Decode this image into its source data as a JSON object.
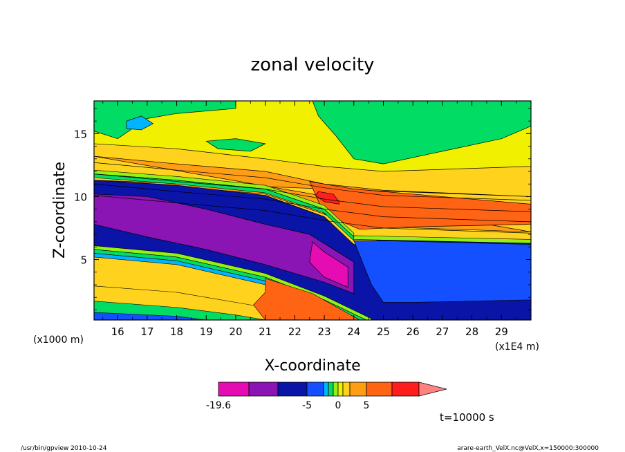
{
  "chart_data": {
    "type": "heatmap",
    "title": "zonal velocity",
    "xlabel": "X-coordinate",
    "ylabel": "Z-coordinate",
    "x_unit": "(x1E4 m)",
    "y_unit": "(x1000 m)",
    "xlim": [
      15.2,
      30.0
    ],
    "ylim": [
      0.2,
      17.6
    ],
    "x_ticks": [
      "16",
      "17",
      "18",
      "19",
      "20",
      "21",
      "22",
      "23",
      "24",
      "25",
      "26",
      "27",
      "28",
      "29"
    ],
    "y_ticks": [
      "5",
      "10",
      "15"
    ],
    "x_tick_values": [
      16,
      17,
      18,
      19,
      20,
      21,
      22,
      23,
      24,
      25,
      26,
      27,
      28,
      29
    ],
    "y_tick_values": [
      5,
      10,
      15
    ],
    "colorbar": {
      "levels": [
        -19.6,
        -15,
        -10,
        -5,
        -3,
        -2,
        -1,
        0,
        1,
        2,
        5,
        10,
        15
      ],
      "labels": [
        "-19.6",
        "-5",
        "0",
        "5"
      ],
      "label_values": [
        -19.6,
        -5,
        0,
        5
      ],
      "colors": [
        "#e60cb4",
        "#8a14b4",
        "#0a14a6",
        "#1450ff",
        "#00b4ff",
        "#00dc64",
        "#96f014",
        "#f0f000",
        "#ffd21e",
        "#ff9e14",
        "#ff6414",
        "#ff1e1e",
        "#ff8282"
      ]
    },
    "time_label": "t=10000 s",
    "footer_left": "/usr/bin/gpview  2010-10-24",
    "footer_right": "arare-earth_VelX.nc@VelX,x=150000:300000",
    "field": {
      "regions_desc": "layered flow: westward jet (negative) in lower-middle layers sloping down to the east; eastward flow above",
      "background": "#ffd21e",
      "bands": [
        {
          "level": 5,
          "color": "#ff9e14",
          "top": [
            [
              15.2,
              13.2
            ],
            [
              18,
              12.6
            ],
            [
              21,
              12.0
            ],
            [
              23,
              11.0
            ],
            [
              25,
              10.5
            ],
            [
              30,
              10.0
            ]
          ],
          "bottom": [
            [
              15.2,
              11.3
            ],
            [
              18,
              10.8
            ],
            [
              21,
              10.2
            ],
            [
              23,
              8.6
            ],
            [
              25,
              7.6
            ],
            [
              30,
              7.2
            ]
          ]
        },
        {
          "level": 10,
          "color": "#ff6414",
          "top": [
            [
              22.5,
              11.2
            ],
            [
              24,
              10.6
            ],
            [
              26,
              10.2
            ],
            [
              30,
              9.4
            ]
          ],
          "bottom": [
            [
              30,
              7.8
            ],
            [
              26,
              7.6
            ],
            [
              24.2,
              7.4
            ],
            [
              23,
              8.6
            ]
          ]
        },
        {
          "level": 15,
          "color": "#ff1e1e",
          "top": [
            [
              22.8,
              10.4
            ],
            [
              23.3,
              10.2
            ],
            [
              23.5,
              9.6
            ]
          ],
          "bottom": [
            [
              23.5,
              9.4
            ],
            [
              23.0,
              9.6
            ],
            [
              22.7,
              10.1
            ]
          ]
        },
        {
          "level": -5,
          "color": "#0a14a6",
          "top": [
            [
              15.2,
              11.3
            ],
            [
              18,
              10.9
            ],
            [
              21,
              10.1
            ],
            [
              23,
              8.4
            ],
            [
              24.0,
              6.2
            ],
            [
              25,
              6.6
            ],
            [
              30,
              6.4
            ]
          ],
          "bottom": [
            [
              30,
              0.2
            ],
            [
              24.6,
              0.2
            ],
            [
              23,
              2.0
            ],
            [
              21,
              3.8
            ],
            [
              18,
              5.4
            ],
            [
              15.2,
              6.0
            ]
          ]
        },
        {
          "level": -10,
          "color": "#8a14b4",
          "top": [
            [
              15.2,
              10.2
            ],
            [
              17,
              10.0
            ],
            [
              19,
              9.0
            ],
            [
              21,
              7.8
            ],
            [
              22.5,
              7.0
            ],
            [
              24,
              4.8
            ]
          ],
          "bottom": [
            [
              24,
              2.3
            ],
            [
              23,
              3.2
            ],
            [
              21,
              4.6
            ],
            [
              19,
              5.8
            ],
            [
              17,
              6.8
            ],
            [
              15.2,
              7.8
            ]
          ]
        },
        {
          "level": -19.6,
          "color": "#e60cb4",
          "top": [
            [
              22.6,
              6.4
            ],
            [
              23.0,
              5.6
            ],
            [
              23.8,
              4.4
            ]
          ],
          "bottom": [
            [
              23.8,
              2.8
            ],
            [
              23.0,
              3.6
            ],
            [
              22.5,
              4.8
            ]
          ]
        },
        {
          "level": -3,
          "color": "#1450ff",
          "top": [
            [
              24.0,
              6.5
            ],
            [
              25,
              6.5
            ],
            [
              30,
              6.2
            ]
          ],
          "bottom": [
            [
              30,
              1.8
            ],
            [
              26,
              1.6
            ],
            [
              25,
              1.6
            ],
            [
              24.6,
              3.0
            ]
          ]
        }
      ]
    }
  }
}
